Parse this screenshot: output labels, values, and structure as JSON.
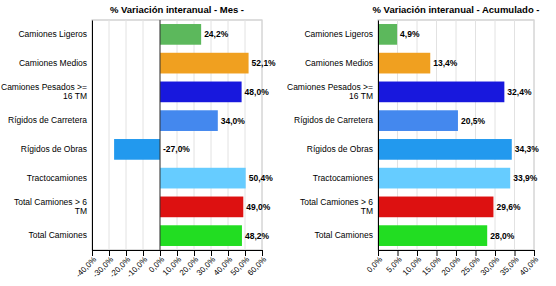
{
  "chart_data": [
    {
      "type": "bar",
      "orientation": "horizontal",
      "title": "% Variación interanual - Mes -",
      "categories": [
        "Camiones Ligeros",
        "Camiones Medios",
        "Camiones Pesados >=\n16 TM",
        "Rígidos de Carretera",
        "Rígidos de Obras",
        "Tractocamiones",
        "Total Camiones > 6\nTM",
        "Total Camiones"
      ],
      "values": [
        24.2,
        52.1,
        48.0,
        34.0,
        -27.0,
        50.4,
        49.0,
        48.2
      ],
      "value_labels": [
        "24,2%",
        "52,1%",
        "48,0%",
        "34,0%",
        "-27,0%",
        "50,4%",
        "49,0%",
        "48,2%"
      ],
      "colors": [
        "#5cb85c",
        "#f0a020",
        "#1818dd",
        "#4488ee",
        "#2299ee",
        "#66ccff",
        "#dd1111",
        "#22dd22"
      ],
      "xlim": [
        -40,
        60
      ],
      "xticks": [
        {
          "value": -40,
          "label": "-40,0%"
        },
        {
          "value": -30,
          "label": "-30,0%"
        },
        {
          "value": -20,
          "label": "-20,0%"
        },
        {
          "value": -10,
          "label": "-10,0%"
        },
        {
          "value": 0,
          "label": "0,0%"
        },
        {
          "value": 10,
          "label": "10,0%"
        },
        {
          "value": 20,
          "label": "20,0%"
        },
        {
          "value": 30,
          "label": "30,0%"
        },
        {
          "value": 40,
          "label": "40,0%"
        },
        {
          "value": 50,
          "label": "50,0%"
        },
        {
          "value": 60,
          "label": "60,0%"
        }
      ],
      "data_labels": true,
      "grid": true
    },
    {
      "type": "bar",
      "orientation": "horizontal",
      "title": "% Variación interanual - Acumulado -",
      "categories": [
        "Camiones Ligeros",
        "Camiones Medios",
        "Camiones Pesados >=\n16 TM",
        "Rígidos de Carretera",
        "Rígidos de Obras",
        "Tractocamiones",
        "Total Camiones > 6\nTM",
        "Total Camiones"
      ],
      "values": [
        4.9,
        13.4,
        32.4,
        20.5,
        34.3,
        33.9,
        29.6,
        28.0
      ],
      "value_labels": [
        "4,9%",
        "13,4%",
        "32,4%",
        "20,5%",
        "34,3%",
        "33,9%",
        "29,6%",
        "28,0%"
      ],
      "colors": [
        "#5cb85c",
        "#f0a020",
        "#1818dd",
        "#4488ee",
        "#2299ee",
        "#66ccff",
        "#dd1111",
        "#22dd22"
      ],
      "xlim": [
        0,
        40
      ],
      "xticks": [
        {
          "value": 0,
          "label": "0,0%"
        },
        {
          "value": 5,
          "label": "5,0%"
        },
        {
          "value": 10,
          "label": "10,0%"
        },
        {
          "value": 15,
          "label": "15,0%"
        },
        {
          "value": 20,
          "label": "20,0%"
        },
        {
          "value": 25,
          "label": "25,0%"
        },
        {
          "value": 30,
          "label": "30,0%"
        },
        {
          "value": 35,
          "label": "35,0%"
        },
        {
          "value": 40,
          "label": "40,0%"
        }
      ],
      "data_labels": true,
      "grid": true
    }
  ]
}
